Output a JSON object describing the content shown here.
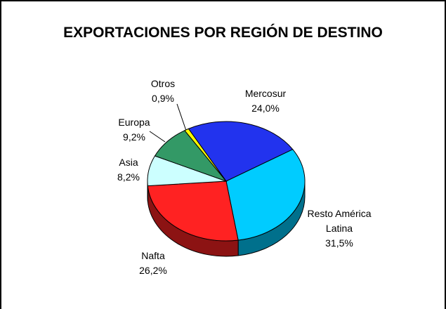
{
  "chart_data": {
    "type": "pie3d",
    "title": "EXPORTACIONES POR REGIÓN DE DESTINO",
    "categories": [
      "Mercosur",
      "Resto América Latina",
      "Nafta",
      "Asia",
      "Europa",
      "Otros"
    ],
    "values": [
      24.0,
      31.5,
      26.2,
      8.2,
      9.2,
      0.9
    ],
    "value_labels": [
      "24,0%",
      "31,5%",
      "26,2%",
      "8,2%",
      "9,2%",
      "0,9%"
    ],
    "colors": [
      "#2233ee",
      "#00ccff",
      "#ff2222",
      "#ccffff",
      "#339966",
      "#ffff00"
    ]
  }
}
